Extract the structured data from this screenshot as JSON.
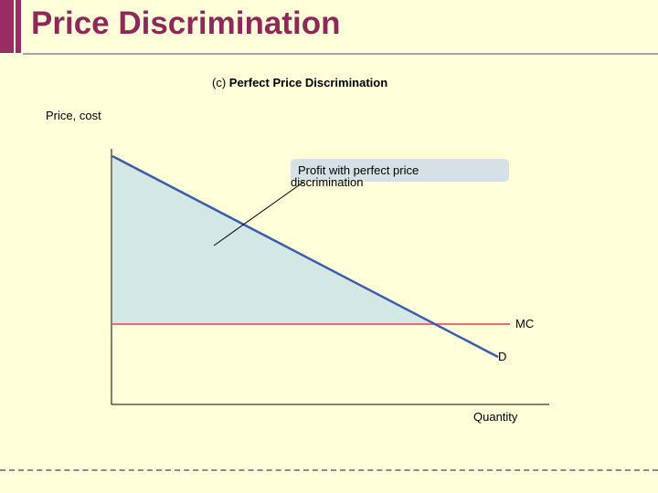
{
  "slide": {
    "title": "Price Discrimination",
    "subtitle_prefix": "(c) ",
    "subtitle_bold": "Perfect Price Discrimination"
  },
  "diagram": {
    "y_axis_label": "Price, cost",
    "x_axis_label": "Quantity",
    "mc_label": "MC",
    "demand_label": "D",
    "callout_line1": "Profit with perfect price",
    "callout_line2": "discrimination"
  },
  "colors": {
    "title": "#8b2a59",
    "accent_bar": "#9b2c63",
    "demand_line": "#3b5cad",
    "mc_line": "#f06a6f",
    "profit_fill": "#d3e8e4",
    "background": "#ffffd9"
  }
}
